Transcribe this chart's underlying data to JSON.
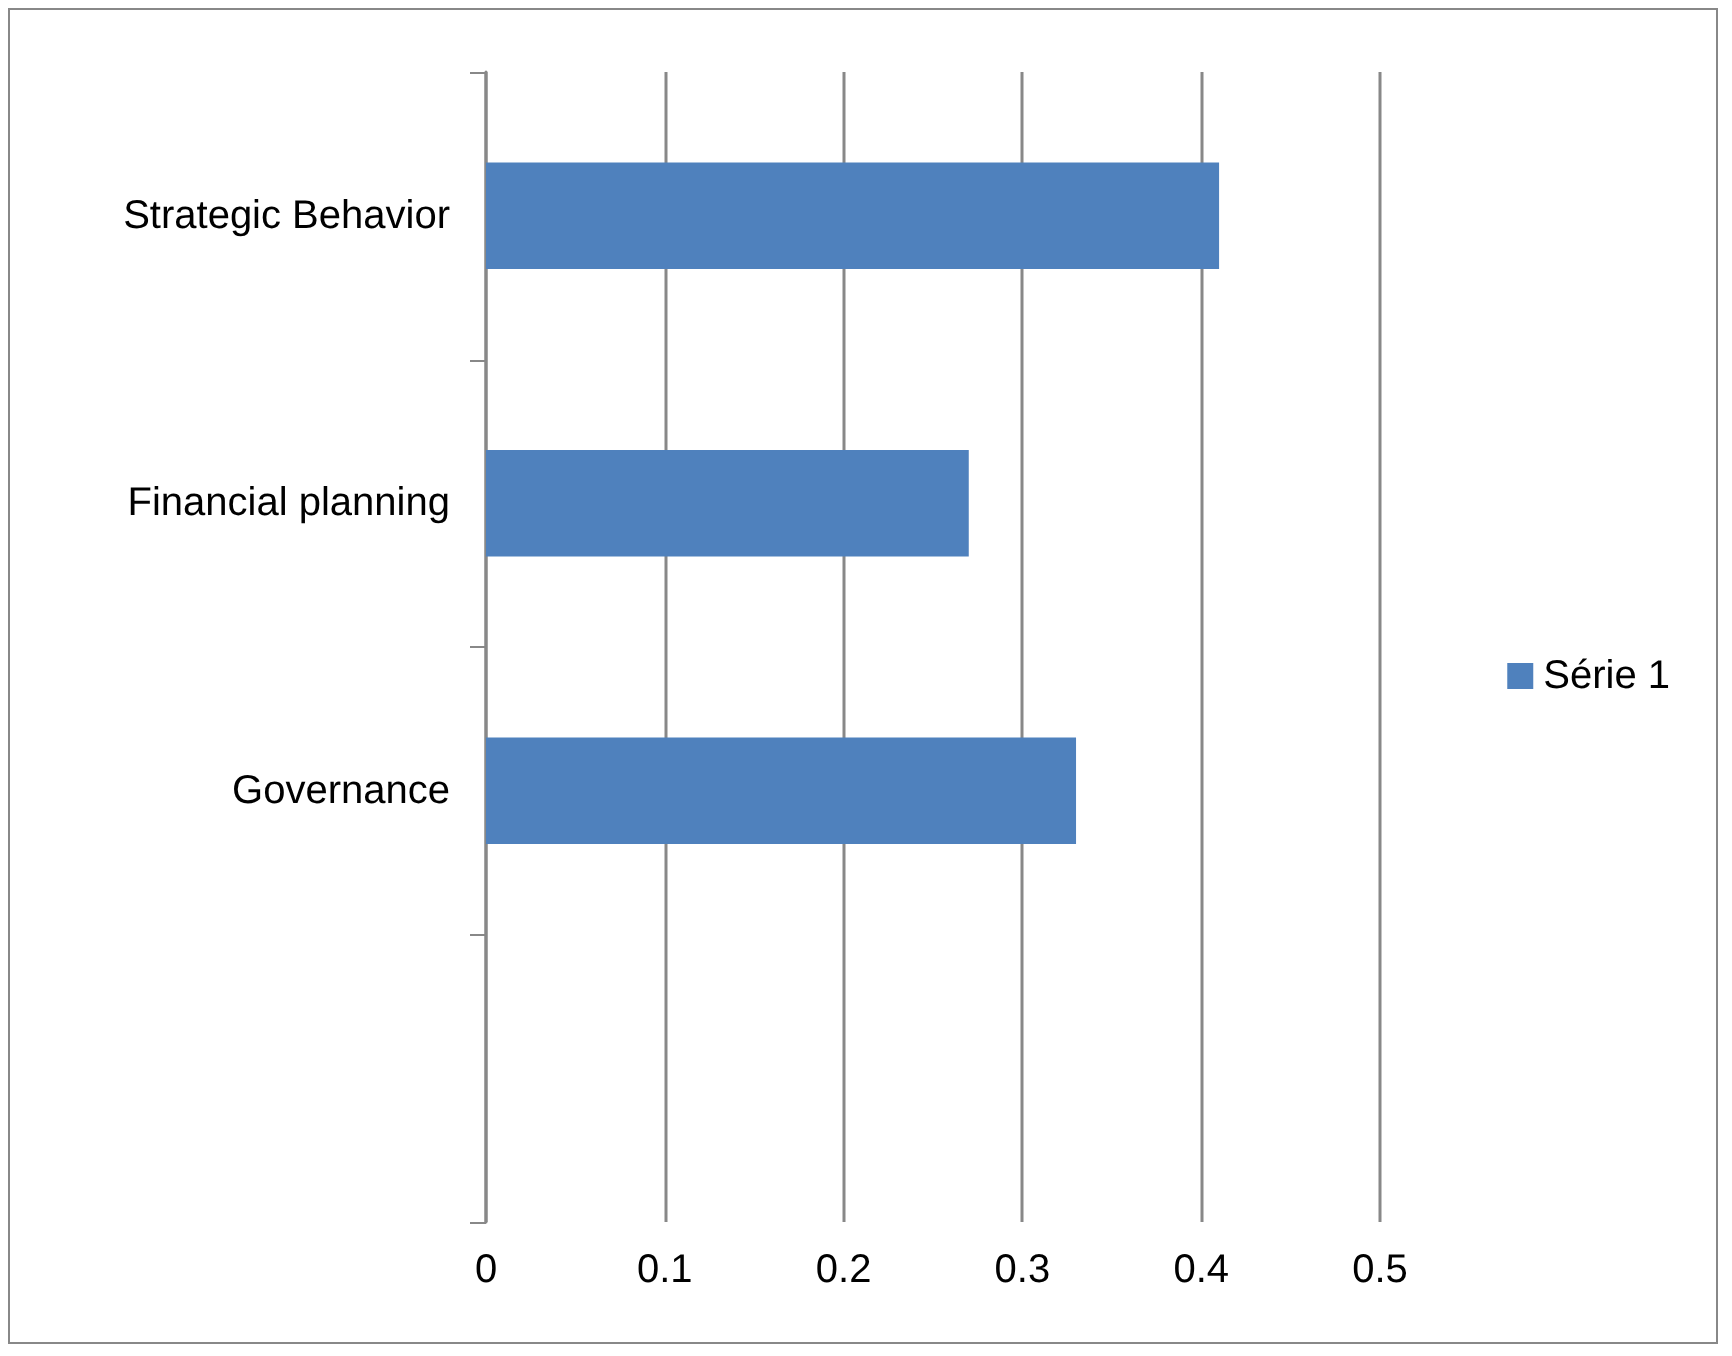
{
  "chart_data": {
    "type": "bar",
    "orientation": "horizontal",
    "categories": [
      "Strategic Behavior",
      "Financial planning",
      "Governance",
      null
    ],
    "series": [
      {
        "name": "Série 1",
        "color": "#4f81bd",
        "values": [
          0.41,
          0.27,
          0.33,
          null
        ]
      }
    ],
    "xlim": [
      0,
      0.5
    ],
    "xticks": [
      0,
      0.1,
      0.2,
      0.3,
      0.4,
      0.5
    ],
    "grid": "x",
    "legend": "right"
  }
}
